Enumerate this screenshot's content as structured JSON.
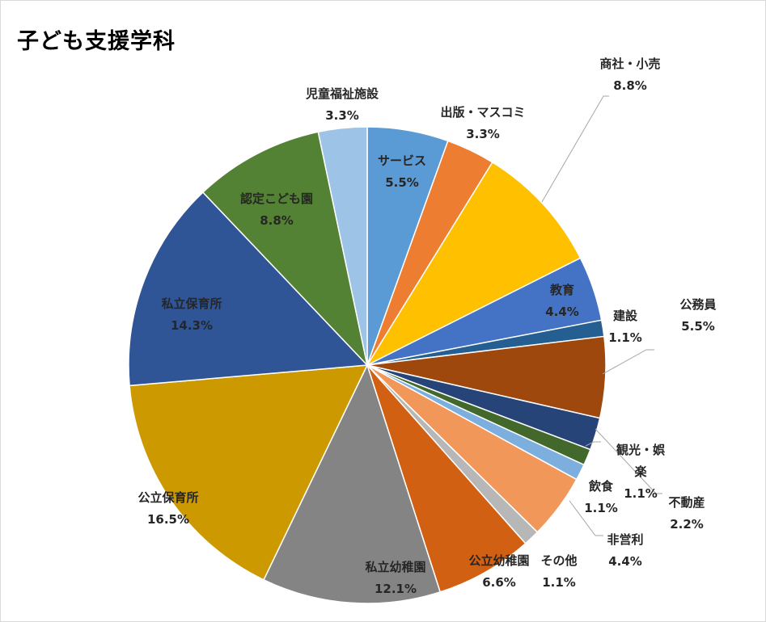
{
  "chart_data": {
    "type": "pie",
    "title": "子ども支援学科",
    "slices": [
      {
        "name": "サービス",
        "value": 5.5,
        "label": "5.5%",
        "color": "#5b9bd5"
      },
      {
        "name": "出版・マスコミ",
        "value": 3.3,
        "label": "3.3%",
        "color": "#ed7d31"
      },
      {
        "name": "商社・小売",
        "value": 8.8,
        "label": "8.8%",
        "color": "#ffc000"
      },
      {
        "name": "教育",
        "value": 4.4,
        "label": "4.4%",
        "color": "#4472c4"
      },
      {
        "name": "建設",
        "value": 1.1,
        "label": "1.1%",
        "color": "#255e91"
      },
      {
        "name": "公務員",
        "value": 5.5,
        "label": "5.5%",
        "color": "#9e480e"
      },
      {
        "name": "",
        "value": 2.2,
        "label": "",
        "color": "#264478"
      },
      {
        "name": "観光・娯楽",
        "value": 1.1,
        "label": "1.1%",
        "color": "#43682b"
      },
      {
        "name": "飲食",
        "value": 1.1,
        "label": "1.1%",
        "color": "#7cafdd"
      },
      {
        "name": "非営利",
        "value": 4.4,
        "label": "4.4%",
        "color": "#f1975a"
      },
      {
        "name": "その他",
        "value": 1.1,
        "label": "1.1%",
        "color": "#b7b7b7"
      },
      {
        "name": "公立幼稚園",
        "value": 6.6,
        "label": "6.6%",
        "color": "#d26012"
      },
      {
        "name": "私立幼稚園",
        "value": 12.1,
        "label": "12.1%",
        "color": "#848484"
      },
      {
        "name": "公立保育所",
        "value": 16.5,
        "label": "16.5%",
        "color": "#cc9a00"
      },
      {
        "name": "私立保育所",
        "value": 14.3,
        "label": "14.3%",
        "color": "#2f5597"
      },
      {
        "name": "認定こども園",
        "value": 8.8,
        "label": "8.8%",
        "color": "#548235"
      },
      {
        "name": "児童福祉施設",
        "value": 3.3,
        "label": "3.3%",
        "color": "#9dc3e6"
      }
    ],
    "extra_labels": [
      {
        "name": "不動産",
        "label": "2.2%"
      }
    ],
    "legend": "none"
  }
}
